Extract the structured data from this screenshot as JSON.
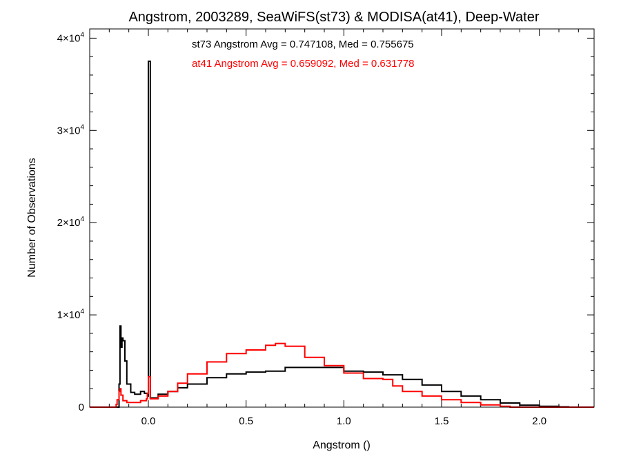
{
  "chart_data": {
    "type": "histogram",
    "title": "Angstrom, 2003289, SeaWiFS(st73) & MODISA(at41), Deep-Water",
    "xlabel": "Angstrom ()",
    "ylabel": "Number of Observations",
    "xlim": [
      -0.3,
      2.28
    ],
    "ylim": [
      0,
      41000
    ],
    "x_ticks": [
      0.0,
      0.5,
      1.0,
      1.5,
      2.0
    ],
    "x_tick_labels": [
      "0.0",
      "0.5",
      "1.0",
      "1.5",
      "2.0"
    ],
    "y_ticks": [
      0,
      10000,
      20000,
      30000,
      40000
    ],
    "y_tick_labels": [
      {
        "mant": "0",
        "exp": ""
      },
      {
        "mant": "1×10",
        "exp": "4"
      },
      {
        "mant": "2×10",
        "exp": "4"
      },
      {
        "mant": "3×10",
        "exp": "4"
      },
      {
        "mant": "4×10",
        "exp": "4"
      }
    ],
    "annotations": [
      {
        "text": "st73 Angstrom Avg = 0.747108, Med = 0.755675",
        "color": "#000000"
      },
      {
        "text": "at41 Angstrom Avg = 0.659092, Med = 0.631778",
        "color": "#ff0000"
      }
    ],
    "series": [
      {
        "color": "#000000",
        "points": [
          [
            -0.3,
            0
          ],
          [
            -0.155,
            0
          ],
          [
            -0.15,
            2500
          ],
          [
            -0.145,
            8800
          ],
          [
            -0.14,
            6500
          ],
          [
            -0.135,
            7500
          ],
          [
            -0.13,
            7200
          ],
          [
            -0.12,
            5000
          ],
          [
            -0.11,
            2500
          ],
          [
            -0.09,
            1600
          ],
          [
            -0.07,
            1400
          ],
          [
            -0.04,
            1700
          ],
          [
            -0.02,
            1500
          ],
          [
            -0.005,
            1200
          ],
          [
            0.0,
            37500
          ],
          [
            0.01,
            1000
          ],
          [
            0.05,
            1400
          ],
          [
            0.1,
            1700
          ],
          [
            0.15,
            2100
          ],
          [
            0.2,
            2500
          ],
          [
            0.3,
            3200
          ],
          [
            0.4,
            3600
          ],
          [
            0.5,
            3800
          ],
          [
            0.6,
            3900
          ],
          [
            0.7,
            4300
          ],
          [
            0.8,
            4300
          ],
          [
            0.9,
            4300
          ],
          [
            1.0,
            3900
          ],
          [
            1.1,
            3800
          ],
          [
            1.2,
            3500
          ],
          [
            1.3,
            3000
          ],
          [
            1.4,
            2400
          ],
          [
            1.5,
            1700
          ],
          [
            1.6,
            1200
          ],
          [
            1.7,
            800
          ],
          [
            1.8,
            450
          ],
          [
            1.9,
            220
          ],
          [
            2.0,
            100
          ],
          [
            2.1,
            40
          ],
          [
            2.15,
            0
          ],
          [
            2.28,
            0
          ]
        ]
      },
      {
        "color": "#ff0000",
        "points": [
          [
            -0.3,
            0
          ],
          [
            -0.17,
            0
          ],
          [
            -0.165,
            300
          ],
          [
            -0.16,
            800
          ],
          [
            -0.15,
            1700
          ],
          [
            -0.145,
            2000
          ],
          [
            -0.14,
            1300
          ],
          [
            -0.13,
            700
          ],
          [
            -0.11,
            500
          ],
          [
            -0.08,
            500
          ],
          [
            -0.04,
            700
          ],
          [
            -0.01,
            900
          ],
          [
            -0.005,
            1500
          ],
          [
            0.0,
            3300
          ],
          [
            0.01,
            900
          ],
          [
            0.05,
            1200
          ],
          [
            0.1,
            1700
          ],
          [
            0.15,
            2600
          ],
          [
            0.2,
            3600
          ],
          [
            0.3,
            4900
          ],
          [
            0.4,
            5800
          ],
          [
            0.5,
            6200
          ],
          [
            0.6,
            6700
          ],
          [
            0.65,
            6900
          ],
          [
            0.7,
            6600
          ],
          [
            0.8,
            5400
          ],
          [
            0.9,
            4500
          ],
          [
            1.0,
            3700
          ],
          [
            1.1,
            3100
          ],
          [
            1.2,
            3000
          ],
          [
            1.25,
            2300
          ],
          [
            1.3,
            1700
          ],
          [
            1.4,
            1200
          ],
          [
            1.5,
            800
          ],
          [
            1.6,
            500
          ],
          [
            1.7,
            250
          ],
          [
            1.8,
            100
          ],
          [
            1.85,
            0
          ],
          [
            2.28,
            0
          ]
        ]
      }
    ]
  }
}
